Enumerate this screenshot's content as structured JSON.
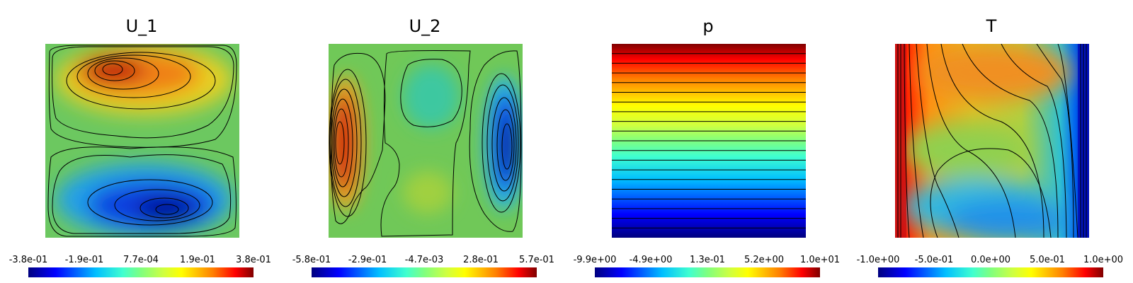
{
  "panels": [
    {
      "title": "U_1",
      "colorbar_ticks": [
        "-3.8e-01",
        "-1.9e-01",
        "7.7e-04",
        "1.9e-01",
        "3.8e-01"
      ]
    },
    {
      "title": "U_2",
      "colorbar_ticks": [
        "-5.8e-01",
        "-2.9e-01",
        "-4.7e-03",
        "2.8e-01",
        "5.7e-01"
      ]
    },
    {
      "title": "p",
      "colorbar_ticks": [
        "-9.9e+00",
        "-4.9e+00",
        "1.3e-01",
        "5.2e+00",
        "1.0e+01"
      ]
    },
    {
      "title": "T",
      "colorbar_ticks": [
        "-1.0e+00",
        "-5.0e-01",
        "0.0e+00",
        "5.0e-01",
        "1.0e+00"
      ]
    }
  ],
  "colormap": [
    "#00007f",
    "#0000ff",
    "#00bfff",
    "#40ffcf",
    "#7fff7f",
    "#cfff40",
    "#ffff00",
    "#ff7f00",
    "#ff0000",
    "#7f0000"
  ]
}
